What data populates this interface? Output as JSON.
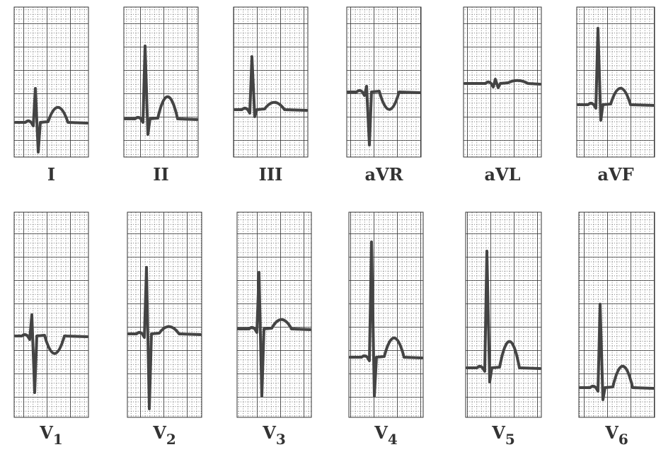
{
  "leads": [
    {
      "label": "I"
    },
    {
      "label": "II"
    },
    {
      "label": "III"
    },
    {
      "label": "aVR"
    },
    {
      "label": "aVL"
    },
    {
      "label": "aVF"
    },
    {
      "label": "V",
      "subscript": "1"
    },
    {
      "label": "V",
      "subscript": "2"
    },
    {
      "label": "V",
      "subscript": "3"
    },
    {
      "label": "V",
      "subscript": "4"
    },
    {
      "label": "V",
      "subscript": "5"
    },
    {
      "label": "V",
      "subscript": "6"
    }
  ]
}
